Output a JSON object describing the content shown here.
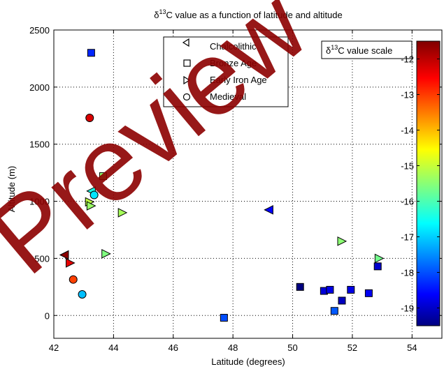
{
  "chart_data": {
    "type": "scatter",
    "title_prefix": "δ",
    "title_sup": "13",
    "title_suffix": "C value as a function of latitude and altitude",
    "xlabel": "Latitude (degrees)",
    "ylabel": "Altitude (m)",
    "xlim": [
      42,
      55
    ],
    "ylim": [
      -200,
      2500
    ],
    "xticks": [
      "42",
      "44",
      "46",
      "48",
      "50",
      "52",
      "54"
    ],
    "yticks": [
      "2500",
      "2000",
      "1500",
      "1000",
      "500",
      "0"
    ],
    "grid": true,
    "legend_position": "top-center",
    "colorbar": {
      "title_prefix": "δ",
      "title_sup": "13",
      "title_suffix": "C value scale",
      "range": [
        -19.5,
        -11.5
      ],
      "ticks": [
        "-12",
        "-13",
        "-14",
        "-15",
        "-16",
        "-17",
        "-18",
        "-19"
      ],
      "colormap": "jet"
    },
    "series": [
      {
        "name": "Chalcolithic",
        "marker": "triangle-left",
        "points": [
          {
            "x": 42.35,
            "y": 530,
            "c": -11.6
          },
          {
            "x": 43.25,
            "y": 1090,
            "c": -16.3
          },
          {
            "x": 49.2,
            "y": 925,
            "c": -18.5
          }
        ]
      },
      {
        "name": "Bronze Age",
        "marker": "square",
        "points": [
          {
            "x": 43.25,
            "y": 2300,
            "c": -18.2
          },
          {
            "x": 43.65,
            "y": 1220,
            "c": -15.4
          },
          {
            "x": 47.7,
            "y": -20,
            "c": -17.9
          },
          {
            "x": 50.25,
            "y": 250,
            "c": -19.5
          },
          {
            "x": 51.05,
            "y": 215,
            "c": -18.8
          },
          {
            "x": 51.25,
            "y": 225,
            "c": -18.7
          },
          {
            "x": 51.4,
            "y": 40,
            "c": -17.8
          },
          {
            "x": 51.65,
            "y": 130,
            "c": -19.0
          },
          {
            "x": 51.95,
            "y": 225,
            "c": -18.7
          },
          {
            "x": 52.55,
            "y": 195,
            "c": -18.6
          },
          {
            "x": 52.85,
            "y": 430,
            "c": -18.9
          }
        ]
      },
      {
        "name": "Early Iron Age",
        "marker": "triangle-right",
        "points": [
          {
            "x": 42.55,
            "y": 460,
            "c": -12.3
          },
          {
            "x": 43.2,
            "y": 995,
            "c": -15.0
          },
          {
            "x": 43.25,
            "y": 960,
            "c": -15.3
          },
          {
            "x": 43.75,
            "y": 540,
            "c": -15.5
          },
          {
            "x": 44.3,
            "y": 900,
            "c": -15.2
          },
          {
            "x": 51.65,
            "y": 650,
            "c": -15.4
          },
          {
            "x": 52.9,
            "y": 500,
            "c": -15.6
          }
        ]
      },
      {
        "name": "Medieval",
        "marker": "circle",
        "points": [
          {
            "x": 43.2,
            "y": 1730,
            "c": -12.2
          },
          {
            "x": 43.35,
            "y": 1055,
            "c": -16.7
          },
          {
            "x": 42.65,
            "y": 315,
            "c": -13.0
          },
          {
            "x": 42.95,
            "y": 185,
            "c": -17.0
          }
        ]
      }
    ]
  },
  "watermark": {
    "text": "Preview",
    "color": "#8c0000"
  }
}
